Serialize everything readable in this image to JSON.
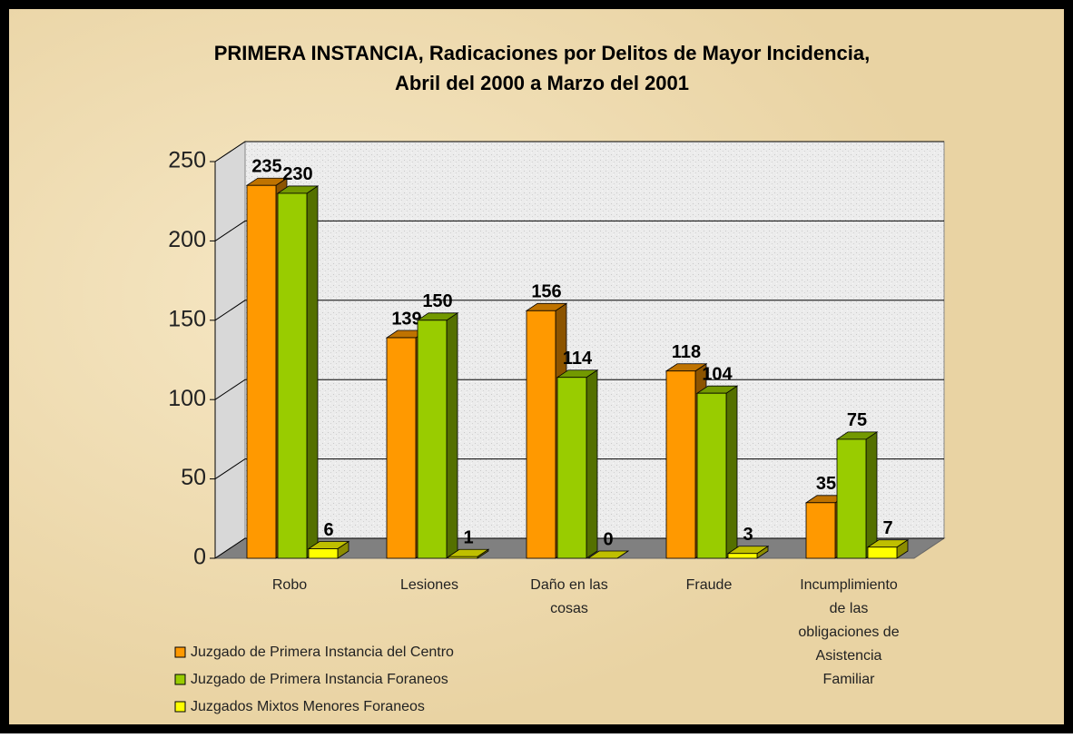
{
  "chart_data": {
    "type": "bar3d",
    "title": [
      "PRIMERA INSTANCIA, Radicaciones por Delitos de Mayor Incidencia,",
      "Abril del 2000 a Marzo del 2001"
    ],
    "categories": [
      "Robo",
      "Lesiones",
      "Daño en las cosas",
      "Fraude",
      "Incumplimiento de las obligaciones de Asistencia Familiar"
    ],
    "series": [
      {
        "name": "Juzgado de Primera Instancia del Centro",
        "color": "#ff9900",
        "values": [
          235,
          139,
          156,
          118,
          35
        ]
      },
      {
        "name": "Juzgado de Primera Instancia Foraneos",
        "color": "#99cc00",
        "values": [
          230,
          150,
          114,
          104,
          75
        ]
      },
      {
        "name": "Juzgados Mixtos Menores Foraneos",
        "color": "#ffff00",
        "values": [
          6,
          1,
          0,
          3,
          7
        ]
      }
    ],
    "ylim": [
      0,
      250
    ],
    "yticks": [
      0,
      50,
      100,
      150,
      200,
      250
    ],
    "grid": true,
    "legend": "bottom-left"
  }
}
